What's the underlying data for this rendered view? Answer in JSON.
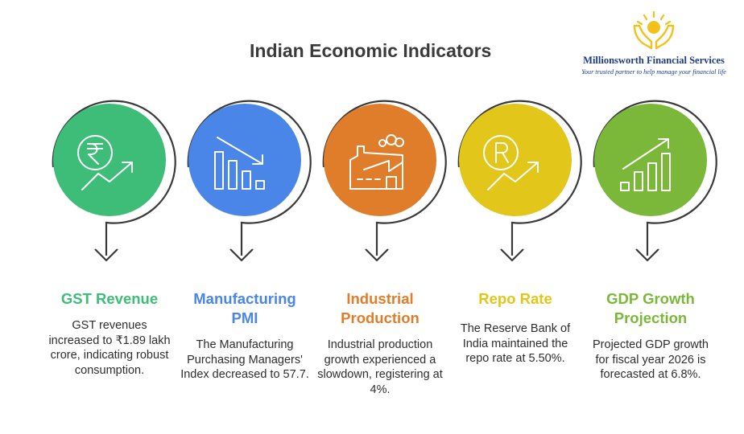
{
  "title": "Indian Economic Indicators",
  "logo": {
    "name": "Millionsworth Financial Services",
    "tagline": "Your trusted partner to help manage your financial life",
    "icon": "hands-sun-icon",
    "colors": {
      "brand": "#1f3a8a",
      "sun": "#f2c21a"
    }
  },
  "indicators": [
    {
      "heading": "GST Revenue",
      "description": "GST revenues increased to ₹1.89 lakh crore, indicating robust consumption.",
      "color": "#3dbd78",
      "icon": "rupee-growth-icon"
    },
    {
      "heading": "Manufacturing PMI",
      "description": "The Manufacturing Purchasing Managers' Index decreased to 57.7.",
      "color": "#4a86e8",
      "icon": "declining-bar-chart-icon"
    },
    {
      "heading": "Industrial Production",
      "description": "Industrial production growth experienced a slowdown, registering at 4%.",
      "color": "#e07d2a",
      "icon": "factory-icon"
    },
    {
      "heading": "Repo Rate",
      "description": "The Reserve Bank of India maintained the repo rate at 5.50%.",
      "color": "#e3c61a",
      "icon": "repo-rate-growth-icon"
    },
    {
      "heading": "GDP Growth Projection",
      "description": "Projected GDP growth for fiscal year 2026 is forecasted at 6.8%.",
      "color": "#7bb83a",
      "icon": "rising-bar-chart-icon"
    }
  ]
}
